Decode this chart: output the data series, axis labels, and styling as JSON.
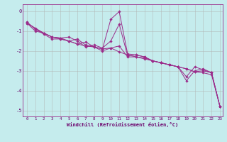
{
  "background_color": "#c5eced",
  "line_color": "#9b2b8a",
  "grid_color": "#b0b0b0",
  "xlim_min": -0.5,
  "xlim_max": 23.3,
  "ylim_min": -5.3,
  "ylim_max": 0.35,
  "yticks": [
    0,
    -1,
    -2,
    -3,
    -4,
    -5
  ],
  "xticks": [
    0,
    1,
    2,
    3,
    4,
    5,
    6,
    7,
    8,
    9,
    10,
    11,
    12,
    13,
    14,
    15,
    16,
    17,
    18,
    19,
    20,
    21,
    22,
    23
  ],
  "xlabel": "Windchill (Refroidissement éolien,°C)",
  "series": [
    {
      "x": [
        0,
        1,
        2,
        3,
        4,
        5,
        6,
        7,
        8,
        9,
        10,
        11,
        12,
        13,
        14,
        15,
        16,
        17,
        18,
        19,
        20,
        21,
        22,
        23
      ],
      "y": [
        -0.6,
        -1.0,
        -1.1,
        -1.3,
        -1.4,
        -1.5,
        -1.65,
        -1.75,
        -1.8,
        -1.9,
        -1.85,
        -2.05,
        -2.2,
        -2.3,
        -2.35,
        -2.5,
        -2.6,
        -2.7,
        -2.8,
        -2.9,
        -3.05,
        -3.1,
        -3.2,
        -4.8
      ]
    },
    {
      "x": [
        0,
        1,
        2,
        3,
        4,
        5,
        6,
        7,
        8,
        9,
        10,
        11,
        12,
        13,
        14,
        15,
        16,
        17,
        18,
        19,
        20,
        21,
        22,
        23
      ],
      "y": [
        -0.6,
        -0.85,
        -1.1,
        -1.3,
        -1.35,
        -1.5,
        -1.65,
        -1.55,
        -1.8,
        -1.9,
        -0.4,
        -0.02,
        -2.15,
        -2.2,
        -2.3,
        -2.5,
        -2.6,
        -2.7,
        -2.8,
        -3.3,
        -2.8,
        -2.95,
        -3.1,
        -4.8
      ]
    },
    {
      "x": [
        0,
        1,
        2,
        3,
        4,
        5,
        6,
        7,
        8,
        9,
        10,
        11,
        12,
        13,
        14,
        15,
        16,
        17,
        18,
        19,
        20,
        21,
        22,
        23
      ],
      "y": [
        -0.55,
        -0.9,
        -1.1,
        -1.3,
        -1.35,
        -1.3,
        -1.5,
        -1.8,
        -1.7,
        -1.85,
        -1.5,
        -0.65,
        -2.25,
        -2.2,
        -2.3,
        -2.5,
        -2.6,
        -2.7,
        -2.8,
        -2.9,
        -3.05,
        -3.0,
        -3.1,
        -4.8
      ]
    },
    {
      "x": [
        0,
        1,
        2,
        3,
        4,
        5,
        6,
        7,
        8,
        9,
        10,
        11,
        12,
        13,
        14,
        15,
        16,
        17,
        18,
        19,
        20,
        21,
        22,
        23
      ],
      "y": [
        -0.55,
        -0.9,
        -1.15,
        -1.4,
        -1.4,
        -1.5,
        -1.4,
        -1.7,
        -1.8,
        -2.0,
        -1.85,
        -1.75,
        -2.3,
        -2.3,
        -2.4,
        -2.5,
        -2.6,
        -2.7,
        -2.8,
        -3.5,
        -3.0,
        -2.9,
        -3.1,
        -4.8
      ]
    }
  ]
}
